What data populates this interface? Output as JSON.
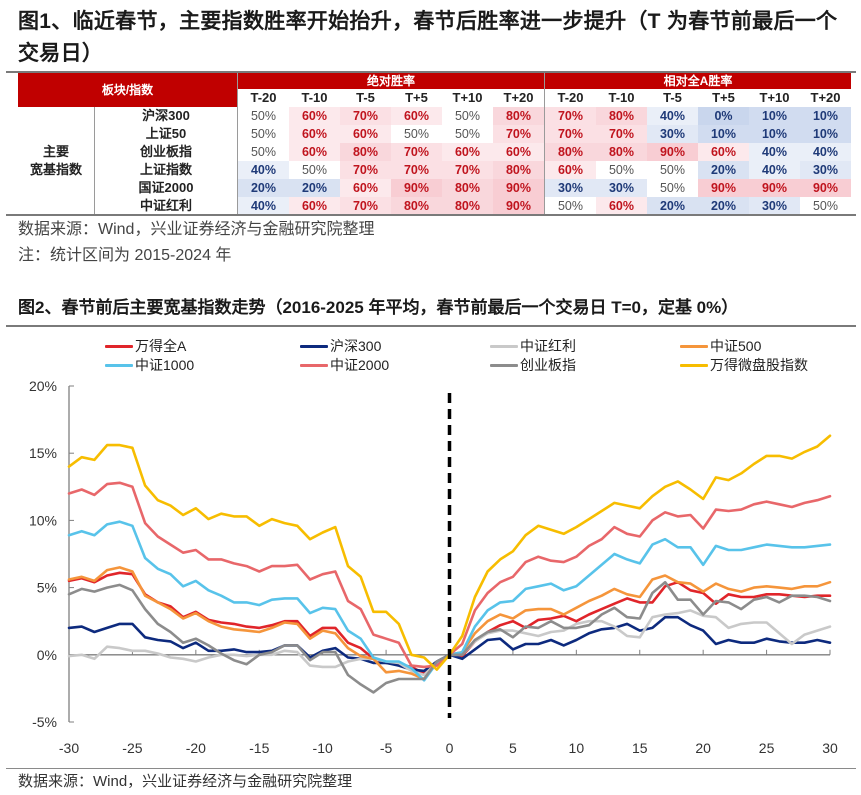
{
  "figure1": {
    "title": "图1、临近春节，主要指数胜率开始抬升，春节后胜率进一步提升（T 为春节前最后一个交易日）",
    "table": {
      "header_left": "板块/指数",
      "group_headers": [
        "绝对胜率",
        "相对全A胜率"
      ],
      "sub_headers": [
        "T-20",
        "T-10",
        "T-5",
        "T+5",
        "T+10",
        "T+20"
      ],
      "category": "主要\n宽基指数",
      "category_lines": [
        "主要",
        "宽基指数"
      ],
      "rows": [
        {
          "name": "沪深300",
          "absolute": [
            "50%",
            "60%",
            "70%",
            "60%",
            "50%",
            "80%"
          ],
          "relative": [
            "70%",
            "80%",
            "40%",
            "0%",
            "10%",
            "10%"
          ]
        },
        {
          "name": "上证50",
          "absolute": [
            "50%",
            "60%",
            "60%",
            "50%",
            "50%",
            "70%"
          ],
          "relative": [
            "70%",
            "70%",
            "30%",
            "10%",
            "10%",
            "10%"
          ]
        },
        {
          "name": "创业板指",
          "absolute": [
            "50%",
            "60%",
            "80%",
            "70%",
            "60%",
            "60%"
          ],
          "relative": [
            "80%",
            "80%",
            "90%",
            "60%",
            "40%",
            "40%"
          ]
        },
        {
          "name": "上证指数",
          "absolute": [
            "40%",
            "50%",
            "70%",
            "70%",
            "70%",
            "80%"
          ],
          "relative": [
            "60%",
            "50%",
            "50%",
            "20%",
            "40%",
            "30%"
          ]
        },
        {
          "name": "国证2000",
          "absolute": [
            "20%",
            "20%",
            "60%",
            "90%",
            "80%",
            "90%"
          ],
          "relative": [
            "30%",
            "30%",
            "50%",
            "90%",
            "90%",
            "90%"
          ]
        },
        {
          "name": "中证红利",
          "absolute": [
            "40%",
            "60%",
            "70%",
            "80%",
            "80%",
            "90%"
          ],
          "relative": [
            "50%",
            "60%",
            "20%",
            "20%",
            "30%",
            "50%"
          ]
        }
      ],
      "colors": {
        "header_bg": "#c00000",
        "high": "#c0141e",
        "low": "#1f3a78",
        "neutral": "#555555"
      }
    },
    "source": "数据来源：Wind，兴业证券经济与金融研究院整理",
    "note": "注：统计区间为 2015-2024 年"
  },
  "figure2": {
    "title": "图2、春节前后主要宽基指数走势（2016-2025 年平均，春节前最后一个交易日 T=0，定基 0%）",
    "source": "数据来源：Wind，兴业证券经济与金融研究院整理"
  },
  "chart_data": {
    "type": "line",
    "title": "春节前后主要宽基指数走势（2016-2025 年平均，春节前最后一个交易日 T=0，定基 0%）",
    "xlabel": "",
    "ylabel": "",
    "xlim": [
      -30,
      30
    ],
    "ylim": [
      -5,
      20
    ],
    "x_ticks": [
      -30,
      -25,
      -20,
      -15,
      -10,
      -5,
      0,
      5,
      10,
      15,
      20,
      25,
      30
    ],
    "y_ticks": [
      -5,
      0,
      5,
      10,
      15,
      20
    ],
    "y_tick_labels": [
      "-5%",
      "0%",
      "5%",
      "10%",
      "15%",
      "20%"
    ],
    "legend_position": "top",
    "grid": false,
    "annotations": [
      {
        "type": "vertical-dashed-line",
        "x": 0
      }
    ],
    "series": [
      {
        "name": "万得全A",
        "color": "#e0252a",
        "values": [
          5.5,
          5.7,
          5.4,
          5.9,
          6.1,
          6.0,
          4.5,
          3.9,
          3.6,
          2.8,
          3.2,
          2.6,
          2.4,
          2.3,
          2.1,
          2.0,
          2.2,
          2.5,
          2.5,
          1.4,
          2.0,
          2.0,
          0.9,
          0.5,
          -0.3,
          -0.6,
          -0.7,
          -0.9,
          -1.4,
          -0.7,
          0.0,
          -0.1,
          1.0,
          1.7,
          2.2,
          2.5,
          2.0,
          2.6,
          2.7,
          2.9,
          2.5,
          3.0,
          3.4,
          3.8,
          4.2,
          3.9,
          3.9,
          5.1,
          5.4,
          4.8,
          4.6,
          3.8,
          4.5,
          4.3,
          4.3,
          4.5,
          4.5,
          4.4,
          4.3,
          4.4,
          4.4
        ]
      },
      {
        "name": "沪深300",
        "color": "#0d2a7e",
        "values": [
          2.0,
          2.1,
          1.7,
          2.0,
          2.3,
          2.3,
          1.3,
          1.1,
          1.0,
          0.5,
          0.9,
          0.3,
          0.3,
          0.4,
          0.2,
          0.2,
          0.3,
          0.7,
          0.7,
          -0.2,
          0.3,
          0.5,
          -0.2,
          -0.3,
          -0.6,
          -0.6,
          -0.8,
          -1.1,
          -1.2,
          -0.5,
          0.0,
          -0.3,
          0.4,
          1.1,
          1.2,
          0.4,
          0.8,
          0.8,
          1.1,
          0.7,
          1.1,
          1.6,
          1.9,
          2.0,
          2.3,
          1.8,
          2.0,
          2.8,
          2.8,
          2.2,
          1.8,
          0.8,
          1.1,
          0.9,
          0.9,
          1.2,
          1.0,
          0.9,
          0.9,
          1.1,
          0.9
        ]
      },
      {
        "name": "中证红利",
        "color": "#c9c9c9",
        "values": [
          -0.1,
          0.0,
          -0.3,
          0.6,
          0.5,
          0.3,
          0.3,
          0.1,
          -0.2,
          -0.3,
          -0.5,
          -0.2,
          0.0,
          0.0,
          -0.1,
          0.0,
          0.0,
          0.3,
          0.2,
          -0.8,
          -0.9,
          -0.9,
          -0.5,
          -0.3,
          -0.3,
          -0.5,
          -0.6,
          -1.2,
          -1.5,
          -0.6,
          0.0,
          0.0,
          1.0,
          1.6,
          1.8,
          1.8,
          1.6,
          1.4,
          1.7,
          1.8,
          2.3,
          2.5,
          2.5,
          2.1,
          1.4,
          1.3,
          2.8,
          3.0,
          3.1,
          3.3,
          2.9,
          2.8,
          2.0,
          2.3,
          2.4,
          2.4,
          1.6,
          0.8,
          1.5,
          1.8,
          2.1
        ]
      },
      {
        "name": "中证500",
        "color": "#f5953b",
        "values": [
          5.6,
          5.8,
          5.5,
          6.3,
          6.5,
          6.2,
          4.4,
          3.9,
          3.4,
          2.7,
          3.1,
          2.5,
          2.1,
          1.9,
          1.8,
          1.7,
          2.0,
          2.4,
          2.3,
          1.2,
          1.8,
          1.6,
          0.5,
          -0.1,
          -0.3,
          -1.3,
          -1.2,
          -1.4,
          -1.8,
          -0.6,
          0.0,
          0.2,
          1.6,
          2.5,
          3.0,
          2.7,
          3.3,
          3.4,
          3.4,
          3.0,
          3.5,
          4.0,
          4.4,
          4.9,
          4.5,
          4.3,
          5.6,
          5.9,
          5.4,
          5.3,
          4.7,
          5.3,
          4.9,
          4.7,
          5.0,
          5.1,
          5.0,
          4.9,
          5.1,
          5.1,
          5.4
        ]
      },
      {
        "name": "中证1000",
        "color": "#58c3ea",
        "values": [
          8.9,
          9.2,
          8.9,
          9.7,
          9.9,
          9.6,
          7.2,
          6.4,
          6.0,
          5.1,
          5.5,
          4.8,
          4.4,
          3.9,
          3.9,
          3.7,
          4.1,
          4.2,
          4.2,
          3.1,
          3.5,
          3.4,
          1.8,
          1.2,
          -0.2,
          -0.5,
          -0.5,
          -1.0,
          -1.9,
          -0.6,
          0.0,
          0.2,
          2.1,
          3.3,
          3.9,
          4.0,
          4.9,
          5.1,
          5.3,
          4.8,
          5.1,
          5.9,
          6.7,
          7.5,
          7.1,
          6.8,
          8.2,
          8.6,
          8.0,
          8.0,
          6.7,
          8.1,
          7.8,
          7.8,
          8.0,
          8.2,
          8.1,
          8.0,
          8.0,
          8.1,
          8.2
        ]
      },
      {
        "name": "中证2000",
        "color": "#e8676a",
        "values": [
          12.0,
          12.3,
          11.9,
          12.7,
          12.8,
          12.5,
          9.8,
          8.8,
          8.2,
          7.6,
          7.8,
          7.1,
          7.1,
          6.8,
          6.6,
          6.2,
          6.6,
          6.6,
          6.7,
          5.6,
          6.0,
          6.2,
          4.0,
          3.4,
          1.5,
          1.2,
          0.9,
          -0.8,
          -0.9,
          -0.8,
          0.0,
          0.8,
          3.3,
          4.6,
          5.4,
          5.8,
          6.9,
          7.3,
          7.0,
          6.9,
          7.3,
          8.1,
          8.6,
          9.5,
          9.0,
          8.8,
          10.0,
          10.6,
          10.3,
          10.4,
          9.4,
          10.8,
          10.7,
          10.8,
          11.2,
          11.4,
          11.2,
          11.0,
          11.3,
          11.5,
          11.8
        ]
      },
      {
        "name": "创业板指",
        "color": "#8c8c8c",
        "values": [
          4.5,
          4.9,
          4.7,
          5.0,
          5.2,
          4.8,
          3.4,
          2.3,
          1.7,
          0.9,
          1.2,
          0.7,
          0.1,
          -0.4,
          -0.7,
          0.0,
          0.2,
          0.7,
          0.7,
          -0.4,
          0.2,
          0.2,
          -1.5,
          -2.2,
          -2.8,
          -2.1,
          -1.8,
          -1.8,
          -1.8,
          -0.5,
          0.0,
          0.0,
          1.1,
          1.7,
          1.9,
          1.3,
          2.1,
          2.0,
          2.5,
          2.0,
          2.0,
          2.2,
          3.0,
          3.5,
          2.8,
          2.7,
          4.6,
          5.4,
          4.1,
          4.1,
          3.0,
          4.0,
          3.9,
          3.4,
          4.1,
          4.3,
          3.9,
          4.4,
          4.4,
          4.3,
          4.0
        ]
      },
      {
        "name": "万得微盘股指数",
        "color": "#f7bd00",
        "values": [
          14.0,
          14.7,
          14.5,
          15.6,
          15.6,
          15.4,
          12.6,
          11.5,
          11.1,
          10.4,
          10.9,
          10.1,
          10.5,
          10.3,
          10.3,
          9.6,
          10.1,
          9.8,
          9.6,
          8.6,
          9.1,
          9.5,
          6.6,
          5.8,
          3.2,
          3.2,
          2.3,
          0.0,
          -0.2,
          -1.1,
          0.0,
          1.4,
          4.3,
          6.2,
          7.1,
          7.7,
          8.9,
          9.6,
          9.3,
          9.0,
          9.5,
          10.1,
          10.7,
          11.3,
          11.1,
          10.9,
          11.8,
          12.5,
          12.9,
          12.3,
          11.6,
          13.2,
          13.0,
          13.5,
          14.2,
          14.8,
          14.8,
          14.6,
          15.1,
          15.5,
          16.3
        ]
      }
    ]
  }
}
